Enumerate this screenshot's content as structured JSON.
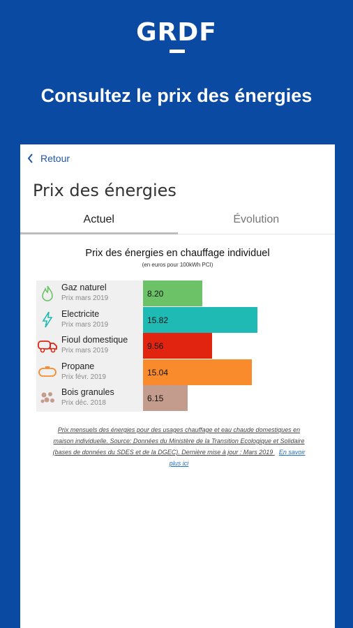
{
  "header": {
    "logo_text": "GRDF",
    "headline": "Consultez le prix des énergies"
  },
  "nav": {
    "back_label": "Retour"
  },
  "page": {
    "title": "Prix des énergies"
  },
  "tabs": [
    {
      "label": "Actuel",
      "active": true
    },
    {
      "label": "Évolution",
      "active": false
    }
  ],
  "chart_data": {
    "type": "bar",
    "orientation": "horizontal",
    "title": "Prix des énergies en chauffage individuel",
    "subtitle": "(en euros pour 100kWh PCI)",
    "xlim": [
      0,
      20
    ],
    "categories": [
      "Gaz naturel",
      "Electricite",
      "Fioul domestique",
      "Propane",
      "Bois granules"
    ],
    "dates": [
      "Prix mars 2019",
      "Prix mars 2019",
      "Prix mars 2019",
      "Prix févr. 2019",
      "Prix déc. 2018"
    ],
    "values": [
      8.2,
      15.82,
      9.56,
      15.04,
      6.15
    ],
    "value_labels": [
      "8.20",
      "15.82",
      "9.56",
      "15.04",
      "6.15"
    ],
    "colors": [
      "#6cc267",
      "#1fbab3",
      "#e12410",
      "#f98b2c",
      "#c49c8d"
    ],
    "icons": [
      "flame-icon",
      "lightning-icon",
      "fuel-truck-icon",
      "propane-tank-icon",
      "pellets-icon"
    ]
  },
  "footnote": {
    "text": "Prix mensuels des énergies pour des usages chauffage et eau chaude domestiques en maison individuelle. Source: Données du Ministère de la Transition Ecologique et Solidaire (bases de données du SDES et de la DGEC). Dernière mise à jour : Mars 2019",
    "link_label": "En savoir plus ici"
  }
}
